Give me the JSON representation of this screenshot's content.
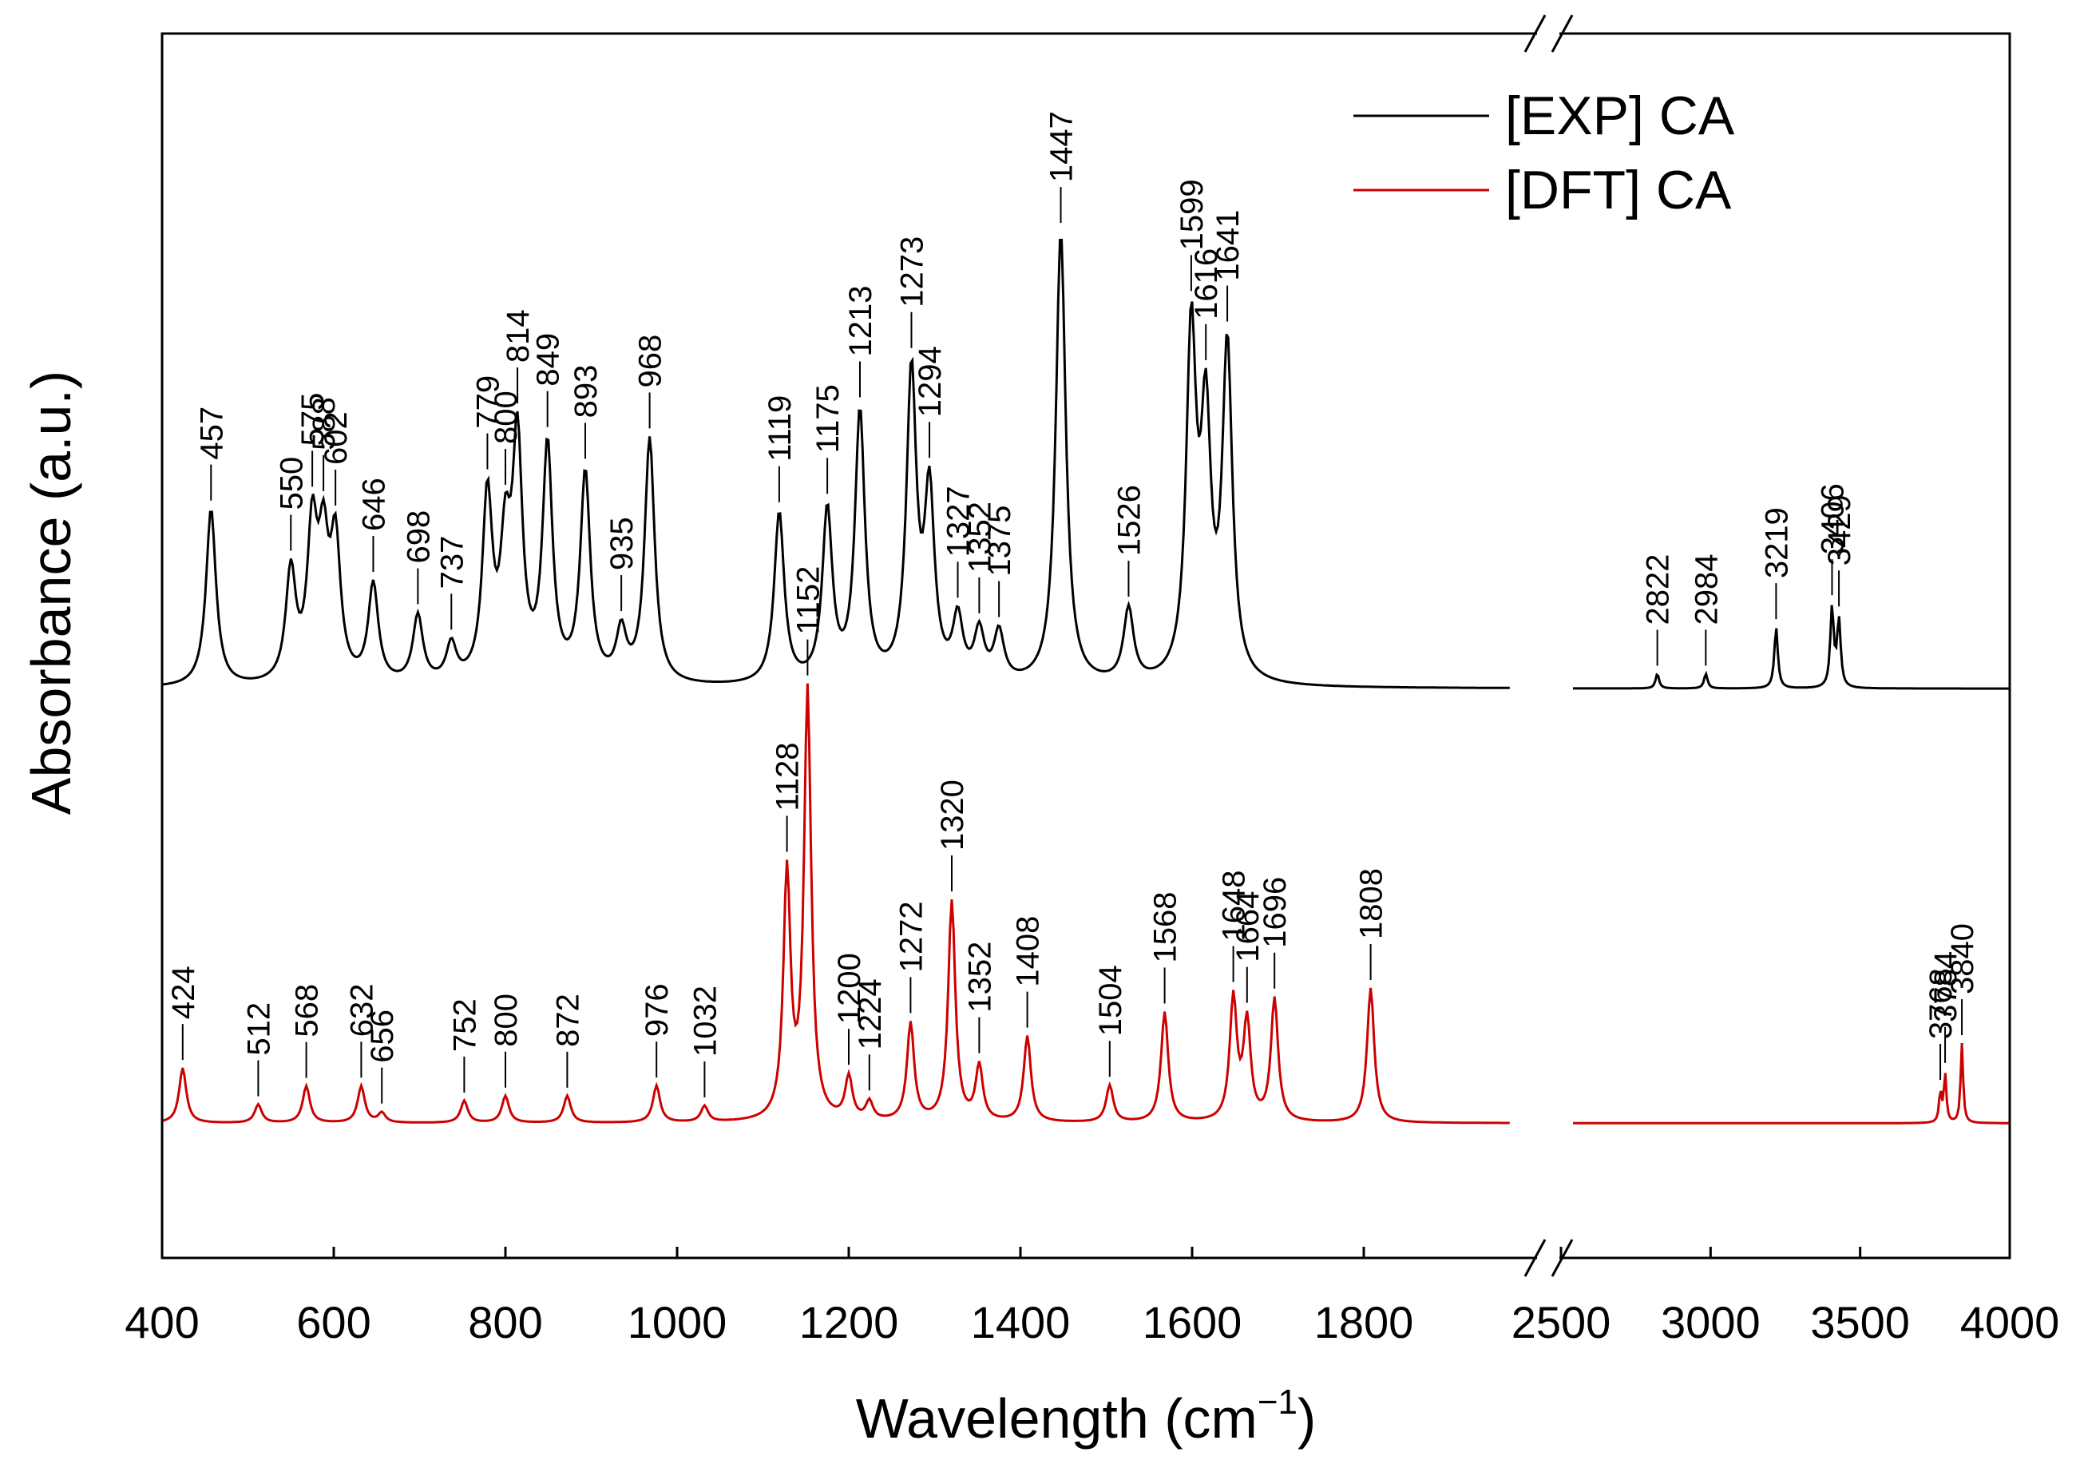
{
  "chart_data": {
    "type": "line",
    "title": "",
    "xlabel_main": "Wavelength (cm",
    "xlabel_sup": "−1",
    "xlabel_close": ")",
    "ylabel": "Absorbance (a.u.)",
    "x_break": {
      "left_range": [
        400,
        2000
      ],
      "right_range": [
        2500,
        4000
      ]
    },
    "x_ticks": [
      {
        "value": 400,
        "label": "400"
      },
      {
        "value": 600,
        "label": "600"
      },
      {
        "value": 800,
        "label": "800"
      },
      {
        "value": 1000,
        "label": "1000"
      },
      {
        "value": 1200,
        "label": "1200"
      },
      {
        "value": 1400,
        "label": "1400"
      },
      {
        "value": 1600,
        "label": "1600"
      },
      {
        "value": 1800,
        "label": "1800"
      },
      {
        "value": 2500,
        "label": "2500"
      },
      {
        "value": 3000,
        "label": "3000"
      },
      {
        "value": 3500,
        "label": "3500"
      },
      {
        "value": 4000,
        "label": "4000"
      }
    ],
    "ylim": [
      0,
      1
    ],
    "legend": {
      "position": "top-right",
      "entries": [
        {
          "label": "[EXP] CA",
          "color": "#000000"
        },
        {
          "label": "[DFT] CA",
          "color": "#cc0000"
        }
      ]
    },
    "series": [
      {
        "name": "[EXP] CA",
        "color": "#000000",
        "baseline": 0.465,
        "peaks": [
          {
            "x": 457,
            "label": "457",
            "h": 0.145
          },
          {
            "x": 550,
            "label": "550",
            "h": 0.09
          },
          {
            "x": 575,
            "label": "575",
            "h": 0.12
          },
          {
            "x": 588,
            "label": "588",
            "h": 0.1
          },
          {
            "x": 602,
            "label": "602",
            "h": 0.11
          },
          {
            "x": 646,
            "label": "646",
            "h": 0.08
          },
          {
            "x": 698,
            "label": "698",
            "h": 0.055
          },
          {
            "x": 737,
            "label": "737",
            "h": 0.03
          },
          {
            "x": 779,
            "label": "779",
            "h": 0.15
          },
          {
            "x": 800,
            "label": "800",
            "h": 0.1
          },
          {
            "x": 814,
            "label": "814",
            "h": 0.19
          },
          {
            "x": 849,
            "label": "849",
            "h": 0.19
          },
          {
            "x": 893,
            "label": "893",
            "h": 0.17
          },
          {
            "x": 935,
            "label": "935",
            "h": 0.04
          },
          {
            "x": 968,
            "label": "968",
            "h": 0.2
          },
          {
            "x": 1119,
            "label": "1119",
            "h": 0.14
          },
          {
            "x": 1175,
            "label": "1175",
            "h": 0.14
          },
          {
            "x": 1213,
            "label": "1213",
            "h": 0.22
          },
          {
            "x": 1273,
            "label": "1273",
            "h": 0.25
          },
          {
            "x": 1294,
            "label": "1294",
            "h": 0.15
          },
          {
            "x": 1327,
            "label": "1327",
            "h": 0.05
          },
          {
            "x": 1352,
            "label": "1352",
            "h": 0.04
          },
          {
            "x": 1375,
            "label": "1375",
            "h": 0.04
          },
          {
            "x": 1447,
            "label": "1447",
            "h": 0.37
          },
          {
            "x": 1526,
            "label": "1526",
            "h": 0.06
          },
          {
            "x": 1599,
            "label": "1599",
            "h": 0.28
          },
          {
            "x": 1616,
            "label": "1616",
            "h": 0.2
          },
          {
            "x": 1641,
            "label": "1641",
            "h": 0.27
          },
          {
            "x": 2822,
            "label": "2822",
            "h": 0.012
          },
          {
            "x": 2984,
            "label": "2984",
            "h": 0.012
          },
          {
            "x": 3219,
            "label": "3219",
            "h": 0.05
          },
          {
            "x": 3406,
            "label": "3406",
            "h": 0.065
          },
          {
            "x": 3429,
            "label": "3429",
            "h": 0.055
          }
        ]
      },
      {
        "name": "[DFT] CA",
        "color": "#cc0000",
        "baseline": 0.11,
        "peaks": [
          {
            "x": 424,
            "label": "424",
            "h": 0.045
          },
          {
            "x": 512,
            "label": "512",
            "h": 0.015
          },
          {
            "x": 568,
            "label": "568",
            "h": 0.03
          },
          {
            "x": 632,
            "label": "632",
            "h": 0.03
          },
          {
            "x": 656,
            "label": "656",
            "h": 0.008
          },
          {
            "x": 752,
            "label": "752",
            "h": 0.018
          },
          {
            "x": 800,
            "label": "800",
            "h": 0.022
          },
          {
            "x": 872,
            "label": "872",
            "h": 0.022
          },
          {
            "x": 976,
            "label": "976",
            "h": 0.03
          },
          {
            "x": 1032,
            "label": "1032",
            "h": 0.013
          },
          {
            "x": 1128,
            "label": "1128",
            "h": 0.2
          },
          {
            "x": 1152,
            "label": "1152",
            "h": 0.35
          },
          {
            "x": 1200,
            "label": "1200",
            "h": 0.035
          },
          {
            "x": 1224,
            "label": "1224",
            "h": 0.015
          },
          {
            "x": 1272,
            "label": "1272",
            "h": 0.08
          },
          {
            "x": 1320,
            "label": "1320",
            "h": 0.18
          },
          {
            "x": 1352,
            "label": "1352",
            "h": 0.045
          },
          {
            "x": 1408,
            "label": "1408",
            "h": 0.07
          },
          {
            "x": 1504,
            "label": "1504",
            "h": 0.03
          },
          {
            "x": 1568,
            "label": "1568",
            "h": 0.09
          },
          {
            "x": 1648,
            "label": "1648",
            "h": 0.1
          },
          {
            "x": 1664,
            "label": "1664",
            "h": 0.08
          },
          {
            "x": 1696,
            "label": "1696",
            "h": 0.1
          },
          {
            "x": 1808,
            "label": "1808",
            "h": 0.11
          },
          {
            "x": 3768,
            "label": "3768",
            "h": 0.025
          },
          {
            "x": 3784,
            "label": "3784",
            "h": 0.04
          },
          {
            "x": 3840,
            "label": "3840",
            "h": 0.065
          }
        ]
      }
    ]
  }
}
